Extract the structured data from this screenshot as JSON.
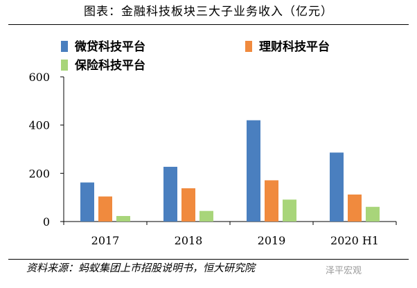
{
  "title": "图表：金融科技板块三大子业务收入（亿元）",
  "source": "资料来源：蚂蚁集团上市招股说明书，恒大研究院",
  "watermark": "泽平宏观",
  "colors": {
    "micro_loan": "#4a7fbf",
    "wealth": "#f08a3e",
    "insurance": "#a8d57a"
  },
  "chart_data": {
    "type": "bar",
    "title": "图表：金融科技板块三大子业务收入（亿元）",
    "categories": [
      "2017",
      "2018",
      "2019",
      "2020 H1"
    ],
    "series": [
      {
        "name": "微贷科技平台",
        "values": [
          162,
          227,
          420,
          286
        ]
      },
      {
        "name": "理财科技平台",
        "values": [
          104,
          138,
          171,
          112
        ]
      },
      {
        "name": "保险科技平台",
        "values": [
          23,
          44,
          91,
          61
        ]
      }
    ],
    "ylim": [
      0,
      600
    ],
    "yticks": [
      "0",
      "200",
      "400",
      "600"
    ],
    "xlabel": "",
    "ylabel": "",
    "grid": false,
    "legend": "top"
  }
}
